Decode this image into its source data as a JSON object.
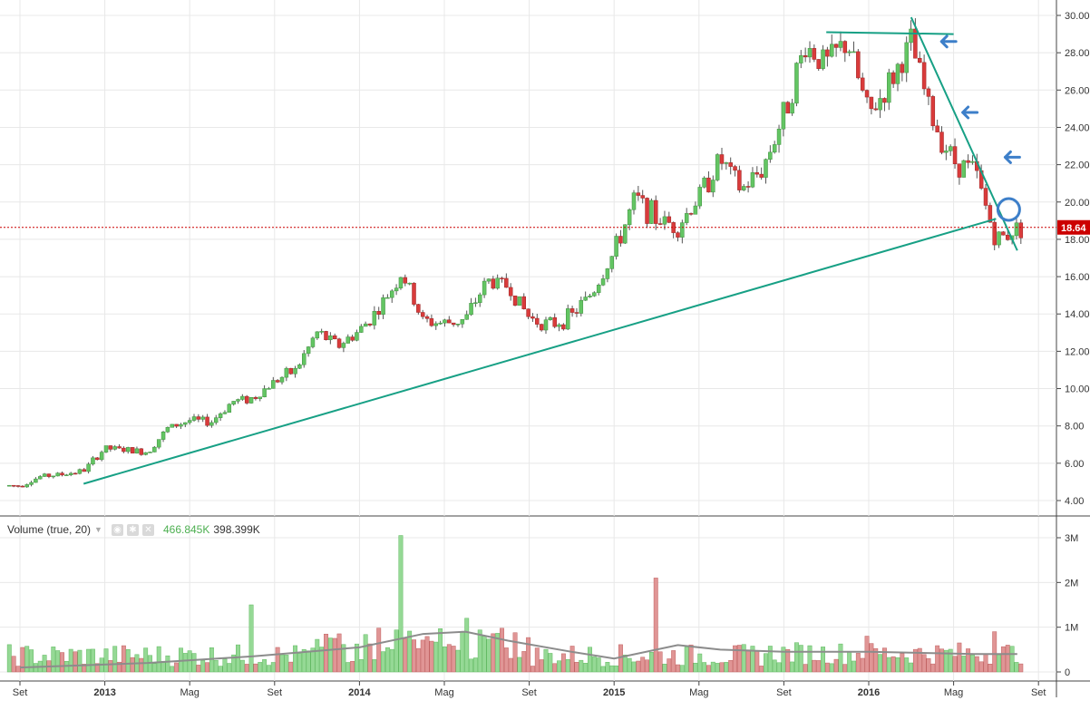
{
  "colors": {
    "up": "#63c563",
    "down": "#d93b3b",
    "up_volume": "#95d995",
    "down_volume": "#e09595",
    "trendline": "#17a085",
    "arrow": "#3d7fc9",
    "price_line": "#cc0000",
    "grid": "#e8e8e8",
    "avg_volume": "#8c8c8c"
  },
  "volume_legend": {
    "label": "Volume (true, 20)",
    "value_1": "466.845K",
    "value_2": "398.399K",
    "eye_icon": "eye-icon",
    "gear_icon": "gear-icon",
    "close_icon": "close-icon"
  },
  "chart_data": [
    {
      "type": "candlestick",
      "title": "",
      "y_axis_side": "right",
      "ylim": [
        3.5,
        30.5
      ],
      "y_ticks": [
        "30.00",
        "28.00",
        "26.00",
        "24.00",
        "22.00",
        "20.00",
        "18.00",
        "16.00",
        "14.00",
        "12.00",
        "10.00",
        "8.00",
        "6.00",
        "4.00"
      ],
      "x_ticks": [
        "Set",
        "2013",
        "Mag",
        "Set",
        "2014",
        "Mag",
        "Set",
        "2015",
        "Mag",
        "Set",
        "2016",
        "Mag",
        "Set"
      ],
      "bold_x_ticks": [
        "2013",
        "2014",
        "2015",
        "2016"
      ],
      "grid": true,
      "current_price": {
        "value": 18.64,
        "label": "18.64"
      },
      "close_path": [
        [
          "2012-09",
          4.8
        ],
        [
          "2012-10",
          5.3
        ],
        [
          "2012-11",
          5.4
        ],
        [
          "2012-12",
          5.6
        ],
        [
          "2013-01",
          6.8
        ],
        [
          "2013-02",
          6.7
        ],
        [
          "2013-03",
          6.6
        ],
        [
          "2013-04",
          7.9
        ],
        [
          "2013-05",
          8.3
        ],
        [
          "2013-06",
          8.2
        ],
        [
          "2013-07",
          9.3
        ],
        [
          "2013-08",
          9.5
        ],
        [
          "2013-09",
          10.4
        ],
        [
          "2013-10",
          11.0
        ],
        [
          "2013-11",
          13.0
        ],
        [
          "2013-12",
          12.3
        ],
        [
          "2014-01",
          13.1
        ],
        [
          "2014-02",
          14.4
        ],
        [
          "2014-03",
          16.2
        ],
        [
          "2014-04",
          13.6
        ],
        [
          "2014-05",
          13.5
        ],
        [
          "2014-06",
          13.7
        ],
        [
          "2014-07",
          15.8
        ],
        [
          "2014-08",
          15.5
        ],
        [
          "2014-09",
          13.8
        ],
        [
          "2014-10",
          13.4
        ],
        [
          "2014-11",
          13.9
        ],
        [
          "2014-12",
          15.2
        ],
        [
          "2015-01",
          17.3
        ],
        [
          "2015-02",
          20.2
        ],
        [
          "2015-03",
          19.1
        ],
        [
          "2015-04",
          18.7
        ],
        [
          "2015-05",
          20.3
        ],
        [
          "2015-06",
          22.3
        ],
        [
          "2015-07",
          20.6
        ],
        [
          "2015-08",
          21.8
        ],
        [
          "2015-09",
          24.7
        ],
        [
          "2015-10",
          28.4
        ],
        [
          "2015-11",
          27.4
        ],
        [
          "2015-12",
          28.6
        ],
        [
          "2016-01",
          24.6
        ],
        [
          "2016-02",
          26.4
        ],
        [
          "2016-03",
          28.5
        ],
        [
          "2016-04",
          24.4
        ],
        [
          "2016-05",
          22.2
        ],
        [
          "2016-06",
          21.7
        ],
        [
          "2016-07",
          17.9
        ],
        [
          "2016-08",
          18.64
        ]
      ],
      "annotations": {
        "support_trendline": {
          "from": [
            "2012-12",
            4.9
          ],
          "to": [
            "2016-07",
            19.1
          ]
        },
        "resistance_line": {
          "from": [
            "2015-11",
            29.1
          ],
          "to": [
            "2016-05",
            29.0
          ]
        },
        "downtrend_line": {
          "from": [
            "2016-03",
            29.9
          ],
          "to": [
            "2016-08",
            17.4
          ]
        },
        "arrows": [
          {
            "date": "2016-04",
            "value": 28.6
          },
          {
            "date": "2016-05",
            "value": 24.8
          },
          {
            "date": "2016-07",
            "value": 22.4
          }
        ],
        "circle": {
          "date": "2016-07",
          "value": 19.6
        }
      }
    },
    {
      "type": "bar",
      "title": "Volume (true, 20)",
      "y_axis_side": "right",
      "ylim": [
        0,
        3.2
      ],
      "y_ticks": [
        "3M",
        "2M",
        "1M",
        "0"
      ],
      "peaks": [
        [
          "2013-08",
          1.5
        ],
        [
          "2014-03",
          3.05
        ],
        [
          "2014-03",
          1.2
        ],
        [
          "2014-06",
          1.2
        ],
        [
          "2015-03",
          2.1
        ],
        [
          "2016-01",
          0.8
        ],
        [
          "2016-07",
          0.9
        ]
      ],
      "moving_average_path": [
        [
          "2012-09",
          0.1
        ],
        [
          "2013-03",
          0.2
        ],
        [
          "2013-08",
          0.35
        ],
        [
          "2014-01",
          0.55
        ],
        [
          "2014-04",
          0.85
        ],
        [
          "2014-06",
          0.9
        ],
        [
          "2014-08",
          0.7
        ],
        [
          "2014-11",
          0.45
        ],
        [
          "2015-01",
          0.3
        ],
        [
          "2015-04",
          0.6
        ],
        [
          "2015-06",
          0.5
        ],
        [
          "2015-09",
          0.45
        ],
        [
          "2016-01",
          0.45
        ],
        [
          "2016-06",
          0.4
        ],
        [
          "2016-08",
          0.4
        ]
      ]
    }
  ]
}
